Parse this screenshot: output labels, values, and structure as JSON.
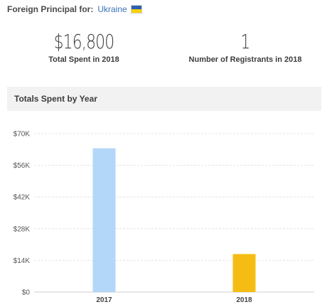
{
  "header": {
    "label": "Foreign Principal for:",
    "country": "Ukraine",
    "flag_icon": "ukraine-flag-icon",
    "flag_colors": {
      "top": "#2f5fb3",
      "bottom": "#f6d200"
    }
  },
  "stats": {
    "total_spent": {
      "value": "$16,800",
      "label": "Total Spent in 2018"
    },
    "registrants": {
      "value": "1",
      "label": "Number of Registrants in 2018"
    }
  },
  "section": {
    "title": "Totals Spent by Year"
  },
  "chart_data": {
    "type": "bar",
    "title": "Totals Spent by Year",
    "categories": [
      "2017",
      "2018"
    ],
    "values": [
      63500,
      16800
    ],
    "colors": [
      "#b3d7f8",
      "#f5bd14"
    ],
    "ylim": [
      0,
      70000
    ],
    "yticks": [
      0,
      14000,
      28000,
      42000,
      56000,
      70000
    ],
    "ytick_labels": [
      "$0",
      "$14K",
      "$28K",
      "$42K",
      "$56K",
      "$70K"
    ],
    "grid": true,
    "xlabel": "",
    "ylabel": ""
  }
}
